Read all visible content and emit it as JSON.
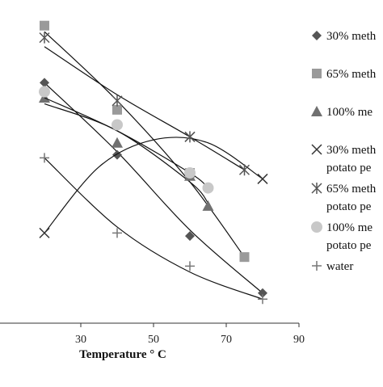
{
  "chart_data": {
    "type": "scatter",
    "title": "",
    "xlabel": "Temperature ° C",
    "ylabel": "",
    "xlim": [
      10,
      90
    ],
    "ylim": [
      0,
      100
    ],
    "xticks": [
      30,
      50,
      70,
      90
    ],
    "grid": false,
    "trendlines": true,
    "legend_position": "right",
    "series": [
      {
        "name": "30% meth",
        "name_line2": "",
        "marker": "diamond",
        "color": "#555555",
        "curve": "#111111",
        "x": [
          20,
          40,
          60,
          80
        ],
        "y": [
          80,
          56,
          29,
          10
        ],
        "fit": [
          [
            20,
            80
          ],
          [
            40,
            57
          ],
          [
            60,
            31
          ],
          [
            80,
            10
          ]
        ]
      },
      {
        "name": "65% meth",
        "name_line2": "",
        "marker": "square",
        "color": "#9a9a9a",
        "curve": "#111111",
        "x": [
          20,
          40,
          60,
          75
        ],
        "y": [
          99,
          71,
          50,
          22
        ],
        "fit": [
          [
            20,
            97
          ],
          [
            40,
            74
          ],
          [
            60,
            47
          ],
          [
            75,
            22
          ]
        ]
      },
      {
        "name": "100% me",
        "name_line2": "",
        "marker": "triangle",
        "color": "#707070",
        "curve": "#111111",
        "x": [
          20,
          40,
          60,
          65
        ],
        "y": [
          75,
          60,
          49,
          39
        ],
        "fit": [
          [
            20,
            73
          ],
          [
            40,
            64
          ],
          [
            60,
            47
          ],
          [
            65,
            40
          ]
        ]
      },
      {
        "name": "30% meth",
        "name_line2": "potato pe",
        "marker": "x",
        "color": "#333333",
        "curve": "#111111",
        "x": [
          20,
          60,
          80
        ],
        "y": [
          30,
          62,
          48
        ],
        "fit": [
          [
            20,
            30
          ],
          [
            35,
            52
          ],
          [
            50,
            61
          ],
          [
            65,
            60
          ],
          [
            80,
            48
          ]
        ]
      },
      {
        "name": "65% meth",
        "name_line2": "potato pe",
        "marker": "star",
        "color": "#555555",
        "curve": "#111111",
        "x": [
          20,
          40,
          60,
          75
        ],
        "y": [
          95,
          74,
          62,
          51
        ],
        "fit": [
          [
            20,
            92
          ],
          [
            40,
            76
          ],
          [
            60,
            62
          ],
          [
            75,
            51
          ]
        ]
      },
      {
        "name": "100% me",
        "name_line2": "potato pe",
        "marker": "circle",
        "color": "#c8c8c8",
        "curve": "#111111",
        "x": [
          20,
          40,
          60,
          65
        ],
        "y": [
          77,
          66,
          50,
          45
        ],
        "fit": [
          [
            20,
            75
          ],
          [
            40,
            64
          ],
          [
            60,
            50
          ],
          [
            65,
            45
          ]
        ]
      },
      {
        "name": "water",
        "name_line2": "",
        "marker": "plus",
        "color": "#777777",
        "curve": "#111111",
        "x": [
          20,
          40,
          60,
          80
        ],
        "y": [
          55,
          30,
          19,
          8
        ],
        "fit": [
          [
            20,
            55
          ],
          [
            40,
            32
          ],
          [
            60,
            17
          ],
          [
            80,
            8
          ]
        ]
      }
    ]
  }
}
